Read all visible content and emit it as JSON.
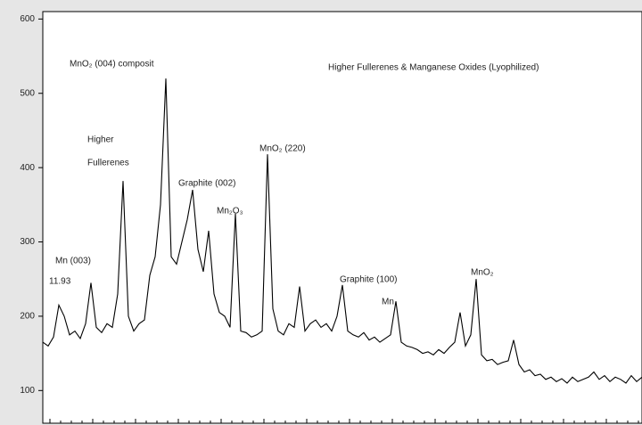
{
  "chart_data": {
    "type": "line",
    "annotations": [
      "MnO₂ (004) composit",
      "Higher Fullerenes & Manganese Oxides (Lyophilized)",
      "Higher",
      "Fullerenes",
      "Graphite (002)",
      "Mn₂O₃",
      "MnO₂ (220)",
      "Mn (003)",
      "11.93",
      "Graphite (100)",
      "Mn",
      "MnO₂"
    ],
    "values": [
      165,
      160,
      172,
      215,
      200,
      175,
      180,
      170,
      190,
      245,
      185,
      178,
      190,
      185,
      230,
      382,
      200,
      180,
      190,
      195,
      255,
      280,
      350,
      520,
      280,
      270,
      300,
      330,
      370,
      290,
      260,
      315,
      230,
      205,
      200,
      185,
      338,
      180,
      178,
      172,
      175,
      180,
      418,
      210,
      180,
      175,
      190,
      185,
      240,
      180,
      190,
      195,
      185,
      190,
      180,
      200,
      242,
      180,
      175,
      172,
      178,
      168,
      172,
      165,
      170,
      175,
      220,
      165,
      160,
      158,
      155,
      150,
      152,
      148,
      155,
      150,
      158,
      165,
      205,
      160,
      175,
      250,
      148,
      140,
      142,
      135,
      138,
      140,
      168,
      135,
      125,
      128,
      120,
      122,
      115,
      118,
      112,
      116,
      110,
      118,
      112,
      115,
      118,
      125,
      115,
      120,
      112,
      118,
      115,
      110,
      120,
      112,
      118
    ],
    "color": "#000000",
    "ylim": [
      56,
      610
    ],
    "yticks": [
      100,
      200,
      300,
      400,
      500,
      600
    ]
  }
}
